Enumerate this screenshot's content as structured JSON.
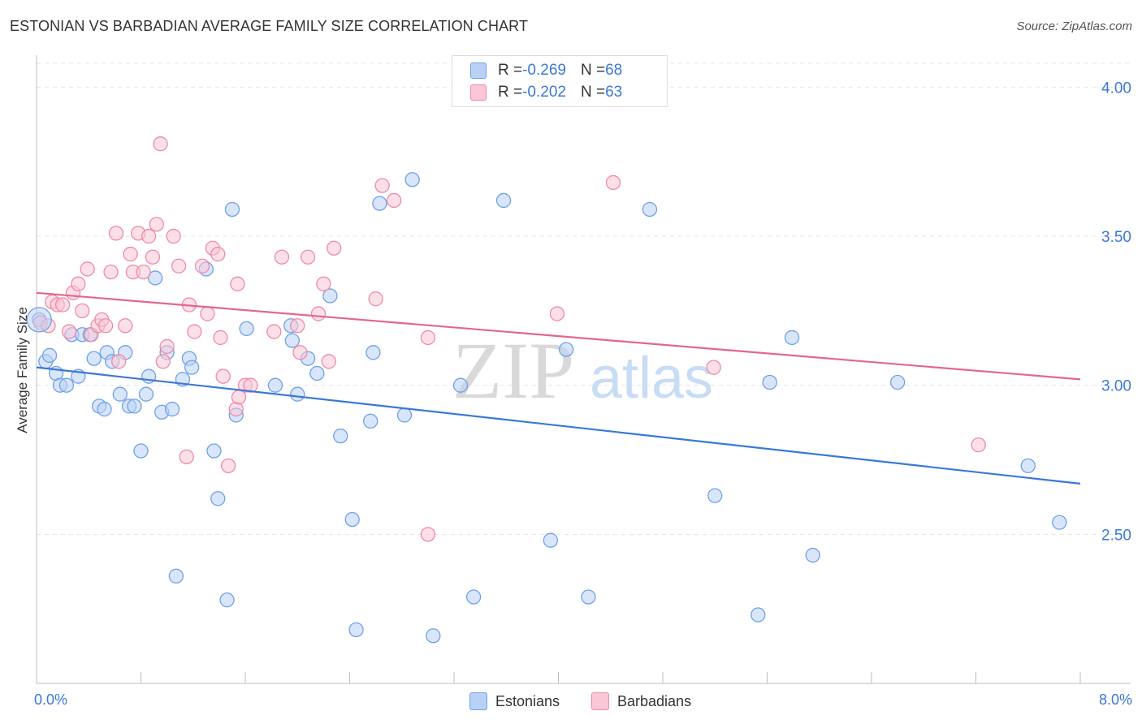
{
  "title": "ESTONIAN VS BARBADIAN AVERAGE FAMILY SIZE CORRELATION CHART",
  "source": "Source: ZipAtlas.com",
  "watermark": {
    "zip": "ZIP",
    "atlas": "atlas"
  },
  "legend": {
    "rows": [
      {
        "r_label": "R = ",
        "r_value": "-0.269",
        "n_label": "N = ",
        "n_value": "68",
        "color": "#6ea1e8",
        "fill": "#b9d1f5"
      },
      {
        "r_label": "R = ",
        "r_value": "-0.202",
        "n_label": "N = ",
        "n_value": "63",
        "color": "#ee8aa8",
        "fill": "#f9c7d6"
      }
    ]
  },
  "bottom_legend": [
    {
      "label": "Estonians",
      "color": "#6ea1e8",
      "fill": "#b9d1f5"
    },
    {
      "label": "Barbadians",
      "color": "#ee8aa8",
      "fill": "#f9c7d6"
    }
  ],
  "chart_data": {
    "type": "scatter",
    "title": "ESTONIAN VS BARBADIAN AVERAGE FAMILY SIZE CORRELATION CHART",
    "xlabel": "",
    "ylabel": "Average Family Size",
    "xlim": [
      0.0,
      8.0
    ],
    "ylim": [
      2.0,
      4.08
    ],
    "x_tick_labels": [
      "0.0%",
      "8.0%"
    ],
    "y_ticks": [
      2.5,
      3.0,
      3.5,
      4.0
    ],
    "y_tick_labels": [
      "2.50",
      "3.00",
      "3.50",
      "4.00"
    ],
    "grid": true,
    "series": [
      {
        "name": "Estonians",
        "color": "#3a78d8",
        "stroke": "#6ea1e8",
        "fill": "#b9d1f5",
        "trend": {
          "x0": 0.0,
          "y0": 3.06,
          "x1": 8.0,
          "y1": 2.67
        },
        "points": [
          [
            0.02,
            3.22
          ],
          [
            0.07,
            3.08
          ],
          [
            0.1,
            3.1
          ],
          [
            0.15,
            3.04
          ],
          [
            0.18,
            3.0
          ],
          [
            0.23,
            3.0
          ],
          [
            0.32,
            3.03
          ],
          [
            0.27,
            3.17
          ],
          [
            0.35,
            3.17
          ],
          [
            0.41,
            3.17
          ],
          [
            0.44,
            3.09
          ],
          [
            0.48,
            2.93
          ],
          [
            0.52,
            2.92
          ],
          [
            0.54,
            3.11
          ],
          [
            0.58,
            3.08
          ],
          [
            0.64,
            2.97
          ],
          [
            0.68,
            3.11
          ],
          [
            0.71,
            2.93
          ],
          [
            0.75,
            2.93
          ],
          [
            0.8,
            2.78
          ],
          [
            0.84,
            2.97
          ],
          [
            0.86,
            3.03
          ],
          [
            0.91,
            3.36
          ],
          [
            0.96,
            2.91
          ],
          [
            1.0,
            3.11
          ],
          [
            1.04,
            2.92
          ],
          [
            1.07,
            2.36
          ],
          [
            1.12,
            3.02
          ],
          [
            1.17,
            3.09
          ],
          [
            1.19,
            3.06
          ],
          [
            1.3,
            3.39
          ],
          [
            1.36,
            2.78
          ],
          [
            1.39,
            2.62
          ],
          [
            1.46,
            2.28
          ],
          [
            1.5,
            3.59
          ],
          [
            1.53,
            2.9
          ],
          [
            1.61,
            3.19
          ],
          [
            1.83,
            3.0
          ],
          [
            1.95,
            3.2
          ],
          [
            1.96,
            3.15
          ],
          [
            2.0,
            2.97
          ],
          [
            2.08,
            3.09
          ],
          [
            2.15,
            3.04
          ],
          [
            2.25,
            3.3
          ],
          [
            2.33,
            2.83
          ],
          [
            2.42,
            2.55
          ],
          [
            2.45,
            2.18
          ],
          [
            2.56,
            2.88
          ],
          [
            2.58,
            3.11
          ],
          [
            2.63,
            3.61
          ],
          [
            2.82,
            2.9
          ],
          [
            2.88,
            3.69
          ],
          [
            3.04,
            2.16
          ],
          [
            3.25,
            3.0
          ],
          [
            3.35,
            2.29
          ],
          [
            3.58,
            3.62
          ],
          [
            3.94,
            2.48
          ],
          [
            4.06,
            3.12
          ],
          [
            4.23,
            2.29
          ],
          [
            4.7,
            3.59
          ],
          [
            5.2,
            2.63
          ],
          [
            5.53,
            2.23
          ],
          [
            5.62,
            3.01
          ],
          [
            5.79,
            3.16
          ],
          [
            5.95,
            2.43
          ],
          [
            6.6,
            3.01
          ],
          [
            7.6,
            2.73
          ],
          [
            7.84,
            2.54
          ]
        ]
      },
      {
        "name": "Barbadians",
        "color": "#e3668f",
        "stroke": "#ee8aa8",
        "fill": "#f9c7d6",
        "trend": {
          "x0": 0.0,
          "y0": 3.31,
          "x1": 8.0,
          "y1": 3.02
        },
        "points": [
          [
            0.03,
            3.21
          ],
          [
            0.09,
            3.2
          ],
          [
            0.12,
            3.28
          ],
          [
            0.16,
            3.27
          ],
          [
            0.2,
            3.27
          ],
          [
            0.25,
            3.18
          ],
          [
            0.28,
            3.31
          ],
          [
            0.32,
            3.34
          ],
          [
            0.35,
            3.25
          ],
          [
            0.39,
            3.39
          ],
          [
            0.42,
            3.17
          ],
          [
            0.47,
            3.2
          ],
          [
            0.5,
            3.22
          ],
          [
            0.53,
            3.2
          ],
          [
            0.57,
            3.38
          ],
          [
            0.61,
            3.51
          ],
          [
            0.63,
            3.08
          ],
          [
            0.68,
            3.2
          ],
          [
            0.72,
            3.44
          ],
          [
            0.74,
            3.38
          ],
          [
            0.78,
            3.51
          ],
          [
            0.82,
            3.38
          ],
          [
            0.86,
            3.5
          ],
          [
            0.89,
            3.43
          ],
          [
            0.92,
            3.54
          ],
          [
            0.95,
            3.81
          ],
          [
            1.0,
            3.13
          ],
          [
            1.05,
            3.5
          ],
          [
            1.09,
            3.4
          ],
          [
            1.15,
            2.76
          ],
          [
            1.17,
            3.27
          ],
          [
            1.21,
            3.18
          ],
          [
            1.27,
            3.4
          ],
          [
            1.31,
            3.24
          ],
          [
            1.35,
            3.46
          ],
          [
            1.39,
            3.44
          ],
          [
            1.41,
            3.16
          ],
          [
            1.43,
            3.03
          ],
          [
            1.47,
            2.73
          ],
          [
            1.53,
            2.92
          ],
          [
            1.54,
            3.34
          ],
          [
            1.6,
            3.0
          ],
          [
            1.64,
            3.0
          ],
          [
            1.82,
            3.18
          ],
          [
            1.88,
            3.43
          ],
          [
            2.0,
            3.2
          ],
          [
            2.02,
            3.11
          ],
          [
            2.08,
            3.43
          ],
          [
            2.16,
            3.24
          ],
          [
            2.2,
            3.34
          ],
          [
            2.24,
            3.08
          ],
          [
            2.28,
            3.46
          ],
          [
            2.6,
            3.29
          ],
          [
            2.65,
            3.67
          ],
          [
            2.74,
            3.62
          ],
          [
            3.0,
            3.16
          ],
          [
            3.0,
            2.5
          ],
          [
            3.99,
            3.24
          ],
          [
            4.42,
            3.68
          ],
          [
            5.19,
            3.06
          ],
          [
            7.22,
            2.8
          ],
          [
            0.97,
            3.08
          ],
          [
            1.55,
            2.96
          ]
        ]
      }
    ]
  }
}
